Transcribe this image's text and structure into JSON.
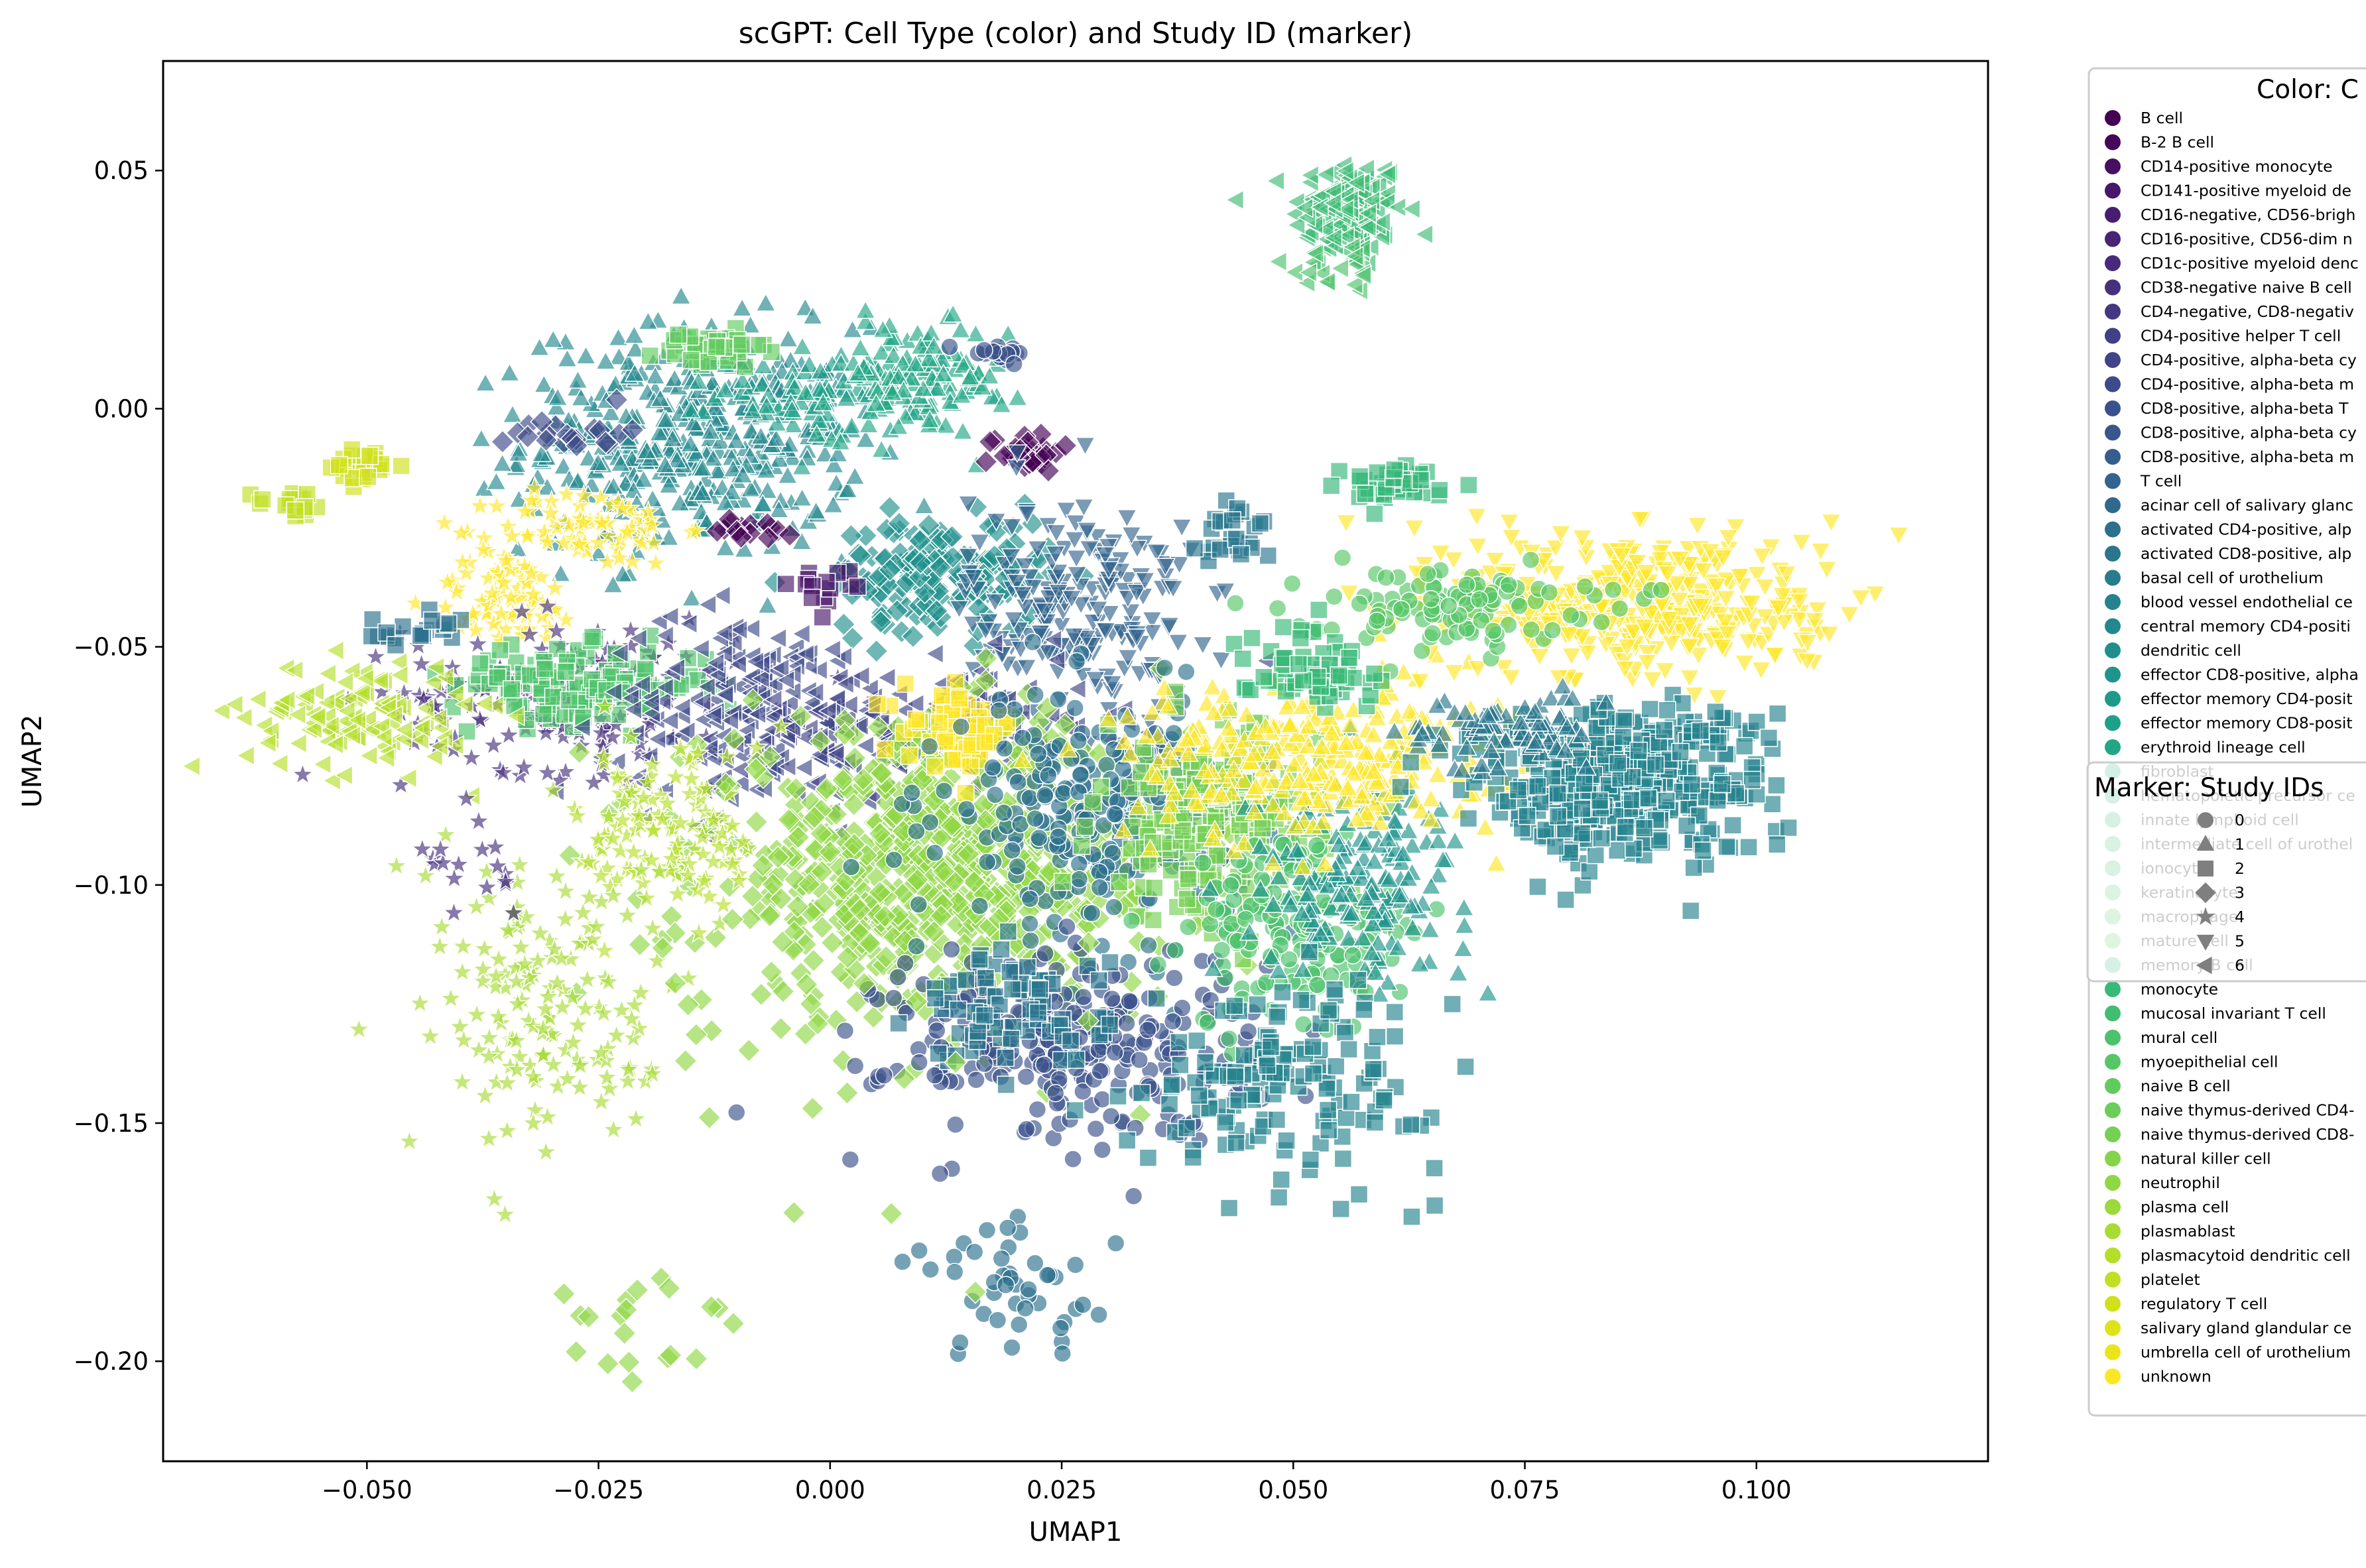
{
  "chart_data": {
    "type": "scatter",
    "title": "scGPT: Cell Type (color) and Study ID (marker)",
    "xlabel": "UMAP1",
    "ylabel": "UMAP2",
    "xlim": [
      -0.072,
      0.125
    ],
    "ylim": [
      -0.221,
      0.073
    ],
    "x_ticks": [
      -0.05,
      -0.025,
      0.0,
      0.025,
      0.05,
      0.075,
      0.1
    ],
    "x_tick_labels": [
      "−0.050",
      "−0.025",
      "0.000",
      "0.025",
      "0.050",
      "0.075",
      "0.100"
    ],
    "y_ticks": [
      0.05,
      0.0,
      -0.05,
      -0.1,
      -0.15,
      -0.2
    ],
    "y_tick_labels": [
      "0.05",
      "0.00",
      "−0.05",
      "−0.10",
      "−0.15",
      "−0.20"
    ],
    "grid": false,
    "legend_color": {
      "title": "Color: C",
      "placement": "outside-right",
      "entries": [
        {
          "label": "B cell",
          "color": "#440154"
        },
        {
          "label": "B-2 B cell",
          "color": "#46075a"
        },
        {
          "label": "CD14-positive monocyte",
          "color": "#470f62"
        },
        {
          "label": "CD141-positive myeloid de",
          "color": "#481769"
        },
        {
          "label": "CD16-negative, CD56-brigh",
          "color": "#481d6f"
        },
        {
          "label": "CD16-positive, CD56-dim n",
          "color": "#482475"
        },
        {
          "label": "CD1c-positive myeloid denc",
          "color": "#472b7a"
        },
        {
          "label": "CD38-negative naive B cell",
          "color": "#46317e"
        },
        {
          "label": "CD4-negative, CD8-negativ",
          "color": "#453882"
        },
        {
          "label": "CD4-positive helper T cell",
          "color": "#433e85"
        },
        {
          "label": "CD4-positive, alpha-beta cy",
          "color": "#414487"
        },
        {
          "label": "CD4-positive, alpha-beta m",
          "color": "#3e4a89"
        },
        {
          "label": "CD8-positive, alpha-beta T",
          "color": "#3b518b"
        },
        {
          "label": "CD8-positive, alpha-beta cy",
          "color": "#38578c"
        },
        {
          "label": "CD8-positive, alpha-beta m",
          "color": "#355e8d"
        },
        {
          "label": "T cell",
          "color": "#32648e"
        },
        {
          "label": "acinar cell of salivary glanc",
          "color": "#2f6a8d"
        },
        {
          "label": "activated CD4-positive, alp",
          "color": "#2c708e"
        },
        {
          "label": "activated CD8-positive, alp",
          "color": "#2a768e"
        },
        {
          "label": "basal cell of urothelium",
          "color": "#287c8e"
        },
        {
          "label": "blood vessel endothelial ce",
          "color": "#25828e"
        },
        {
          "label": "central memory CD4-positi",
          "color": "#23888e"
        },
        {
          "label": "dendritic cell",
          "color": "#218e8d"
        },
        {
          "label": "effector CD8-positive, alpha",
          "color": "#1f948c"
        },
        {
          "label": "effector memory CD4-posit",
          "color": "#1e9a8a"
        },
        {
          "label": "effector memory CD8-posit",
          "color": "#1fa088"
        },
        {
          "label": "erythroid lineage cell",
          "color": "#22a785"
        },
        {
          "label": "fibroblast",
          "color": "#28ae80"
        },
        {
          "label": "hematopoietic precursor ce",
          "color": "#2eb37c"
        },
        {
          "label": "innate lymphoid cell",
          "color": "#35b779"
        },
        {
          "label": "intermediate cell of urothel",
          "color": "#3dbc74"
        },
        {
          "label": "ionocyte",
          "color": "#44bf70"
        },
        {
          "label": "keratinocyte",
          "color": "#4ec36b"
        },
        {
          "label": "macrophage",
          "color": "#58c765"
        },
        {
          "label": "mature cell",
          "color": "#62cb5f"
        },
        {
          "label": "memory B cell",
          "color": "#2fb47c"
        },
        {
          "label": "monocyte",
          "color": "#38b977"
        },
        {
          "label": "mucosal invariant T cell",
          "color": "#42be71"
        },
        {
          "label": "mural cell",
          "color": "#4cc26c"
        },
        {
          "label": "myoepithelial cell",
          "color": "#56c667"
        },
        {
          "label": "naive B cell",
          "color": "#62cb5f"
        },
        {
          "label": "naive thymus-derived CD4-",
          "color": "#6ccd5a"
        },
        {
          "label": "naive thymus-derived CD8-",
          "color": "#75d054"
        },
        {
          "label": "natural killer cell",
          "color": "#84d44b"
        },
        {
          "label": "neutrophil",
          "color": "#8fd744"
        },
        {
          "label": "plasma cell",
          "color": "#9bd93c"
        },
        {
          "label": "plasmablast",
          "color": "#a8db34"
        },
        {
          "label": "plasmacytoid dendritic cell",
          "color": "#b5de2b"
        },
        {
          "label": "platelet",
          "color": "#c2df23"
        },
        {
          "label": "regulatory T cell",
          "color": "#d0e11c"
        },
        {
          "label": "salivary gland glandular ce",
          "color": "#dde318"
        },
        {
          "label": "umbrella cell of urothelium",
          "color": "#eae51a"
        },
        {
          "label": "unknown",
          "color": "#fde725"
        }
      ]
    },
    "legend_marker": {
      "title": "Marker: Study IDs",
      "placement": "outside-right",
      "entries": [
        {
          "label": "0",
          "marker": "circle"
        },
        {
          "label": "1",
          "marker": "triangle-up"
        },
        {
          "label": "2",
          "marker": "square"
        },
        {
          "label": "3",
          "marker": "diamond"
        },
        {
          "label": "4",
          "marker": "star"
        },
        {
          "label": "5",
          "marker": "triangle-down"
        },
        {
          "label": "6",
          "marker": "triangle-left"
        }
      ]
    },
    "clusters": [
      {
        "x": 0.056,
        "y": 0.041,
        "sx": 0.003,
        "sy": 0.006,
        "n": 140,
        "color": "#3dbc74",
        "marker": "triangle-left"
      },
      {
        "x": 0.055,
        "y": 0.03,
        "sx": 0.003,
        "sy": 0.003,
        "n": 18,
        "color": "#4cc26c",
        "marker": "triangle-left"
      },
      {
        "x": -0.015,
        "y": -0.007,
        "sx": 0.009,
        "sy": 0.012,
        "n": 420,
        "color": "#23888e",
        "marker": "triangle-up"
      },
      {
        "x": 0.0,
        "y": 0.003,
        "sx": 0.006,
        "sy": 0.004,
        "n": 90,
        "color": "#1fa088",
        "marker": "triangle-up"
      },
      {
        "x": 0.009,
        "y": 0.006,
        "sx": 0.005,
        "sy": 0.006,
        "n": 120,
        "color": "#22a785",
        "marker": "triangle-up"
      },
      {
        "x": -0.013,
        "y": 0.012,
        "sx": 0.003,
        "sy": 0.002,
        "n": 40,
        "color": "#62cb5f",
        "marker": "square"
      },
      {
        "x": 0.018,
        "y": 0.012,
        "sx": 0.002,
        "sy": 0.001,
        "n": 20,
        "color": "#3b518b",
        "marker": "circle"
      },
      {
        "x": 0.021,
        "y": -0.009,
        "sx": 0.002,
        "sy": 0.002,
        "n": 30,
        "color": "#440154",
        "marker": "diamond"
      },
      {
        "x": -0.028,
        "y": -0.005,
        "sx": 0.003,
        "sy": 0.002,
        "n": 20,
        "color": "#3e4a89",
        "marker": "diamond"
      },
      {
        "x": -0.05,
        "y": -0.012,
        "sx": 0.002,
        "sy": 0.002,
        "n": 25,
        "color": "#d0e11c",
        "marker": "square"
      },
      {
        "x": -0.058,
        "y": -0.02,
        "sx": 0.002,
        "sy": 0.0015,
        "n": 18,
        "color": "#c2df23",
        "marker": "square"
      },
      {
        "x": -0.026,
        "y": -0.025,
        "sx": 0.005,
        "sy": 0.004,
        "n": 80,
        "color": "#fde725",
        "marker": "star"
      },
      {
        "x": -0.035,
        "y": -0.04,
        "sx": 0.004,
        "sy": 0.005,
        "n": 80,
        "color": "#fde725",
        "marker": "star"
      },
      {
        "x": -0.028,
        "y": -0.06,
        "sx": 0.009,
        "sy": 0.008,
        "n": 170,
        "color": "#46317e",
        "marker": "star"
      },
      {
        "x": -0.027,
        "y": -0.058,
        "sx": 0.007,
        "sy": 0.004,
        "n": 130,
        "color": "#4ec36b",
        "marker": "square"
      },
      {
        "x": -0.051,
        "y": -0.064,
        "sx": 0.006,
        "sy": 0.006,
        "n": 130,
        "color": "#b5de2b",
        "marker": "triangle-left"
      },
      {
        "x": -0.045,
        "y": -0.047,
        "sx": 0.003,
        "sy": 0.002,
        "n": 20,
        "color": "#2c708e",
        "marker": "square"
      },
      {
        "x": 0.012,
        "y": -0.035,
        "sx": 0.006,
        "sy": 0.006,
        "n": 170,
        "color": "#21918c",
        "marker": "diamond"
      },
      {
        "x": 0.027,
        "y": -0.042,
        "sx": 0.006,
        "sy": 0.012,
        "n": 220,
        "color": "#32648e",
        "marker": "triangle-down"
      },
      {
        "x": 0.044,
        "y": -0.026,
        "sx": 0.002,
        "sy": 0.004,
        "n": 25,
        "color": "#2a768e",
        "marker": "square"
      },
      {
        "x": -0.009,
        "y": -0.025,
        "sx": 0.002,
        "sy": 0.002,
        "n": 15,
        "color": "#440154",
        "marker": "diamond"
      },
      {
        "x": -0.001,
        "y": -0.038,
        "sx": 0.002,
        "sy": 0.002,
        "n": 15,
        "color": "#481769",
        "marker": "square"
      },
      {
        "x": -0.008,
        "y": -0.063,
        "sx": 0.008,
        "sy": 0.01,
        "n": 200,
        "color": "#3e4a89",
        "marker": "triangle-left"
      },
      {
        "x": 0.011,
        "y": -0.066,
        "sx": 0.01,
        "sy": 0.006,
        "n": 150,
        "color": "#414487",
        "marker": "triangle-left"
      },
      {
        "x": 0.012,
        "y": -0.097,
        "sx": 0.013,
        "sy": 0.015,
        "n": 720,
        "color": "#8fd744",
        "marker": "diamond"
      },
      {
        "x": 0.014,
        "y": -0.067,
        "sx": 0.003,
        "sy": 0.004,
        "n": 60,
        "color": "#fde725",
        "marker": "square"
      },
      {
        "x": 0.029,
        "y": -0.085,
        "sx": 0.008,
        "sy": 0.012,
        "n": 260,
        "color": "#2c708e",
        "marker": "circle"
      },
      {
        "x": 0.026,
        "y": -0.133,
        "sx": 0.01,
        "sy": 0.01,
        "n": 280,
        "color": "#3b518b",
        "marker": "circle"
      },
      {
        "x": 0.02,
        "y": -0.126,
        "sx": 0.005,
        "sy": 0.006,
        "n": 80,
        "color": "#2a768e",
        "marker": "square"
      },
      {
        "x": 0.02,
        "y": -0.185,
        "sx": 0.006,
        "sy": 0.007,
        "n": 45,
        "color": "#2c708e",
        "marker": "circle"
      },
      {
        "x": 0.041,
        "y": -0.087,
        "sx": 0.006,
        "sy": 0.01,
        "n": 180,
        "color": "#75d054",
        "marker": "square"
      },
      {
        "x": 0.051,
        "y": -0.11,
        "sx": 0.006,
        "sy": 0.01,
        "n": 170,
        "color": "#4cc26c",
        "marker": "circle"
      },
      {
        "x": 0.057,
        "y": -0.098,
        "sx": 0.006,
        "sy": 0.01,
        "n": 170,
        "color": "#1f948c",
        "marker": "triangle-up"
      },
      {
        "x": 0.05,
        "y": -0.14,
        "sx": 0.008,
        "sy": 0.01,
        "n": 150,
        "color": "#25828e",
        "marker": "square"
      },
      {
        "x": 0.052,
        "y": -0.074,
        "sx": 0.01,
        "sy": 0.008,
        "n": 300,
        "color": "#fde725",
        "marker": "triangle-up"
      },
      {
        "x": 0.088,
        "y": -0.041,
        "sx": 0.01,
        "sy": 0.008,
        "n": 400,
        "color": "#fde725",
        "marker": "triangle-down"
      },
      {
        "x": 0.066,
        "y": -0.041,
        "sx": 0.008,
        "sy": 0.004,
        "n": 110,
        "color": "#56c667",
        "marker": "circle"
      },
      {
        "x": 0.052,
        "y": -0.054,
        "sx": 0.004,
        "sy": 0.004,
        "n": 60,
        "color": "#38b977",
        "marker": "square"
      },
      {
        "x": 0.061,
        "y": -0.016,
        "sx": 0.003,
        "sy": 0.002,
        "n": 45,
        "color": "#35b779",
        "marker": "square"
      },
      {
        "x": 0.085,
        "y": -0.078,
        "sx": 0.008,
        "sy": 0.008,
        "n": 420,
        "color": "#25828e",
        "marker": "square"
      },
      {
        "x": 0.072,
        "y": -0.068,
        "sx": 0.005,
        "sy": 0.004,
        "n": 80,
        "color": "#2a768e",
        "marker": "triangle-up"
      },
      {
        "x": -0.017,
        "y": -0.088,
        "sx": 0.005,
        "sy": 0.01,
        "n": 120,
        "color": "#b5de2b",
        "marker": "star"
      },
      {
        "x": -0.03,
        "y": -0.125,
        "sx": 0.007,
        "sy": 0.016,
        "n": 160,
        "color": "#a8db34",
        "marker": "star"
      },
      {
        "x": -0.038,
        "y": -0.097,
        "sx": 0.003,
        "sy": 0.004,
        "n": 18,
        "color": "#46317e",
        "marker": "star"
      },
      {
        "x": -0.02,
        "y": -0.195,
        "sx": 0.006,
        "sy": 0.007,
        "n": 20,
        "color": "#8fd744",
        "marker": "diamond"
      },
      {
        "x": -0.004,
        "y": -0.125,
        "sx": 0.01,
        "sy": 0.025,
        "n": 30,
        "color": "#8fd744",
        "marker": "diamond"
      }
    ]
  }
}
